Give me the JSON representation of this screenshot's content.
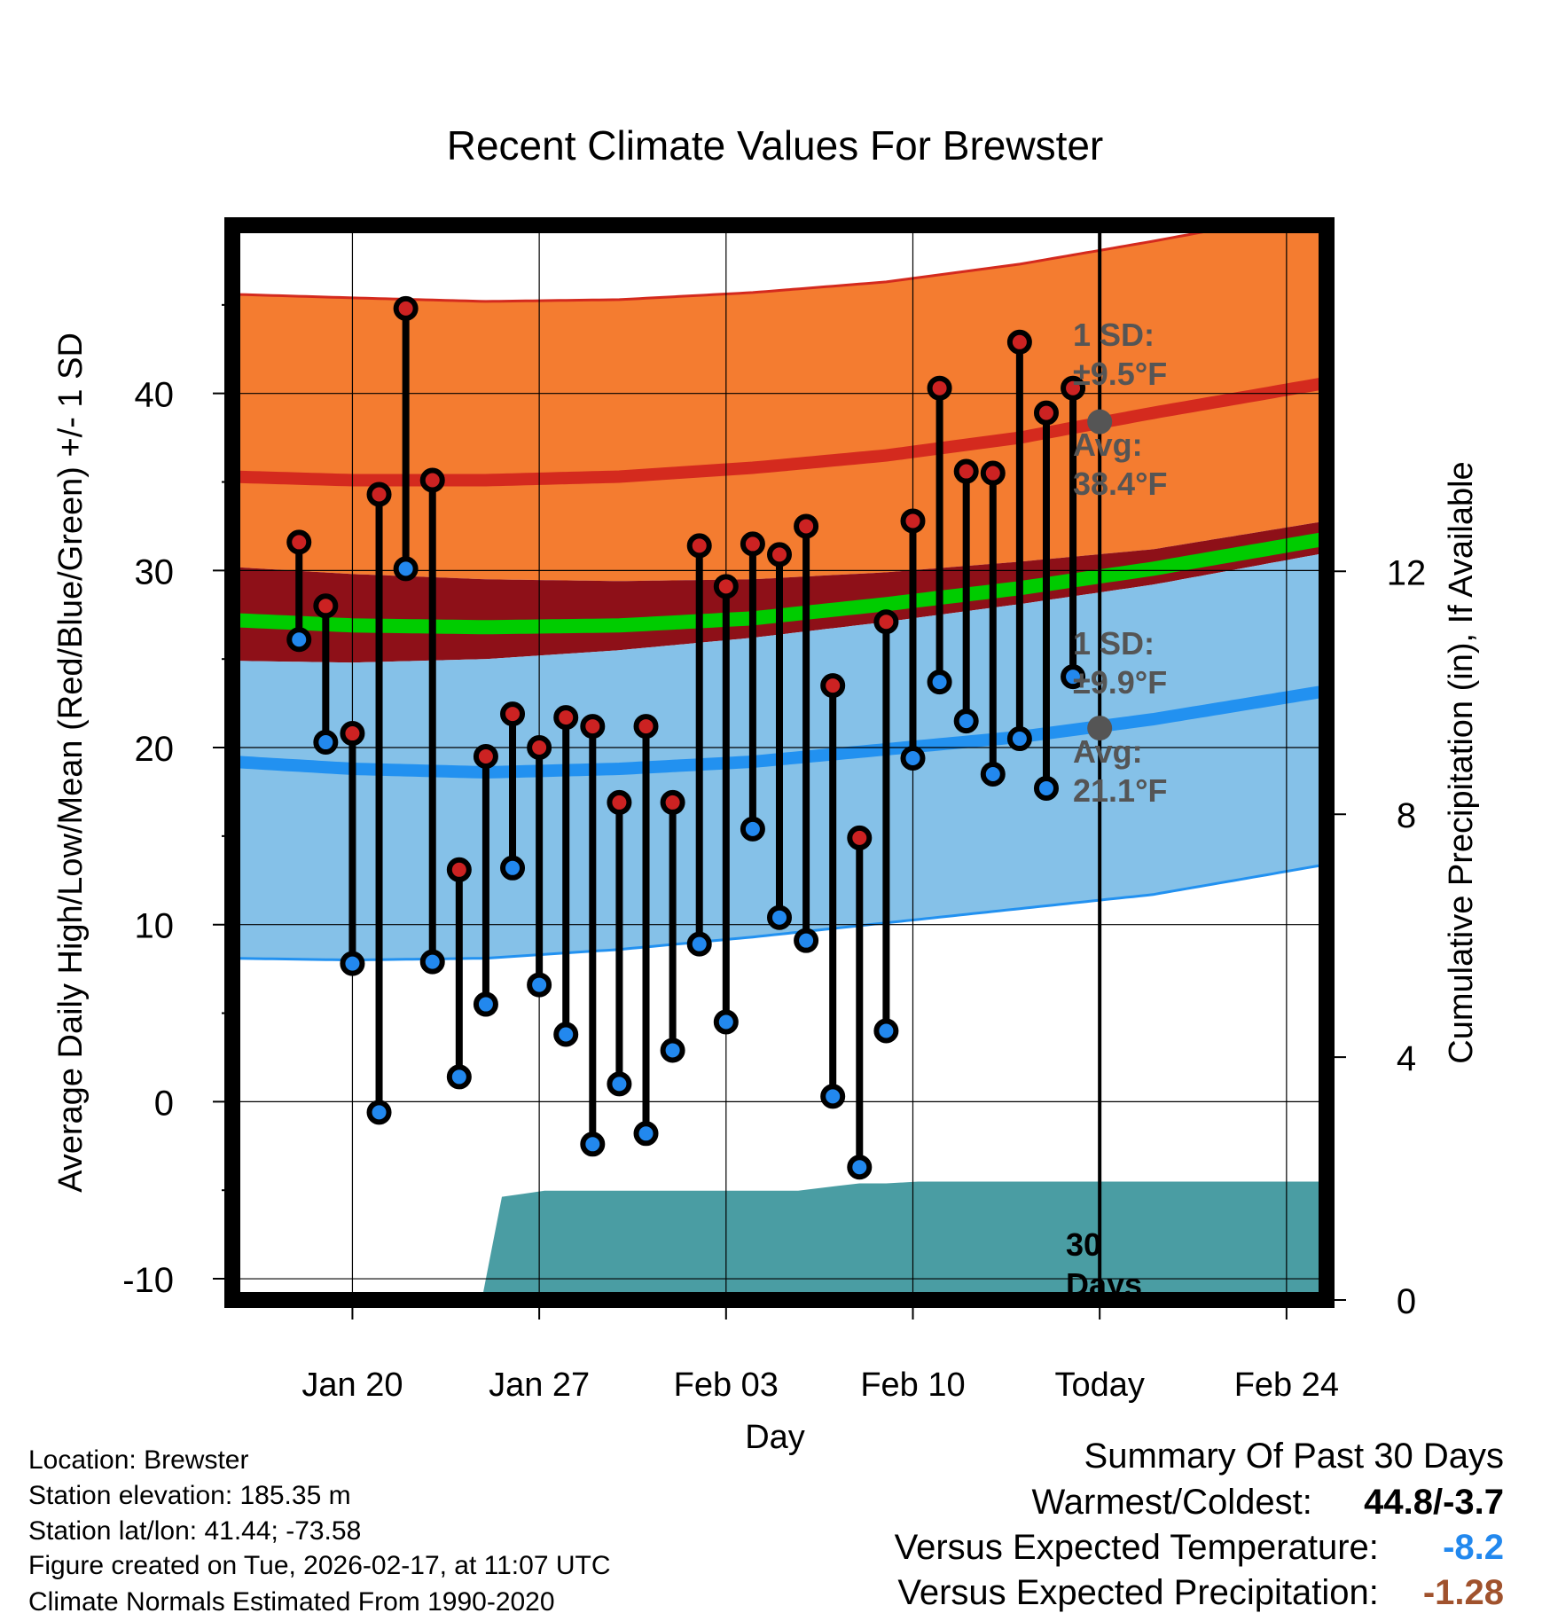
{
  "chart_data": {
    "type": "line",
    "title": "Recent Climate Values For Brewster",
    "xlabel": "Day",
    "ylabel": "Average Daily High/Low/Mean (Red/Blue/Green) +/- 1 SD",
    "y2label": "Cumulative Precipitation (in), If Available",
    "x_range": [
      -4.5,
      36.5
    ],
    "ylim": [
      -11.2,
      49.5
    ],
    "y2lim": [
      0,
      17.7
    ],
    "yticks": [
      -10,
      0,
      10,
      20,
      30,
      40
    ],
    "y2ticks": [
      0,
      4,
      8,
      12
    ],
    "xticks": [
      {
        "day": 0,
        "label": "Jan 20"
      },
      {
        "day": 7,
        "label": "Jan 27"
      },
      {
        "day": 14,
        "label": "Feb 03"
      },
      {
        "day": 21,
        "label": "Feb 10"
      },
      {
        "day": 28,
        "label": "Today"
      },
      {
        "day": 35,
        "label": "Feb 24"
      }
    ],
    "today_day": 28,
    "normals": {
      "days": [
        -4.5,
        0,
        5,
        10,
        15,
        20,
        25,
        30,
        36.5
      ],
      "high_upper": [
        45.6,
        45.4,
        45.2,
        45.3,
        45.7,
        46.3,
        47.3,
        48.6,
        50.4
      ],
      "high_avg": [
        35.3,
        35.1,
        35.1,
        35.3,
        35.8,
        36.5,
        37.5,
        38.9,
        40.6
      ],
      "high_lower": [
        30.2,
        29.8,
        29.5,
        29.4,
        29.5,
        29.9,
        30.5,
        31.2,
        32.8
      ],
      "mean_avg": [
        27.2,
        26.9,
        26.8,
        26.9,
        27.3,
        28.1,
        29.0,
        30.1,
        31.8
      ],
      "low_upper": [
        24.9,
        24.8,
        25.0,
        25.5,
        26.2,
        27.1,
        28.1,
        29.2,
        31.0
      ],
      "low_avg": [
        19.2,
        18.8,
        18.6,
        18.8,
        19.2,
        19.9,
        20.6,
        21.6,
        23.2
      ],
      "low_lower": [
        8.1,
        8.0,
        8.1,
        8.6,
        9.3,
        10.1,
        10.9,
        11.7,
        13.4
      ]
    },
    "series": [
      {
        "name": "High",
        "color": "#cc2222",
        "values": [
          31.6,
          28.0,
          20.8,
          34.3,
          44.8,
          35.1,
          13.1,
          19.5,
          21.9,
          20.0,
          21.7,
          21.2,
          16.9,
          21.2,
          16.9,
          31.4,
          29.1,
          31.5,
          30.9,
          32.5,
          23.5,
          14.9,
          27.1,
          32.8,
          40.3,
          35.6,
          35.5,
          42.9,
          38.9,
          40.3
        ]
      },
      {
        "name": "Low",
        "color": "#2288ee",
        "values": [
          26.1,
          20.3,
          7.8,
          -0.6,
          30.1,
          7.9,
          1.4,
          5.5,
          13.2,
          6.6,
          3.8,
          -2.4,
          1.0,
          -1.8,
          2.9,
          8.9,
          4.5,
          15.4,
          10.4,
          9.1,
          0.3,
          -3.7,
          4.0,
          19.4,
          23.7,
          21.5,
          18.5,
          20.5,
          17.7,
          24.0
        ]
      }
    ],
    "days_start": -2,
    "precipitation": {
      "days": [
        -2,
        2,
        2.9,
        3.8,
        4.9,
        5.6,
        6.4,
        7.2,
        8.5,
        10,
        12,
        14.8,
        15.3,
        16.7,
        18.2,
        19,
        20,
        21.2,
        22.2,
        23.2,
        25,
        28,
        36.5
      ],
      "values": [
        0.12,
        0.12,
        0.12,
        0.12,
        0.12,
        1.7,
        1.75,
        1.8,
        1.8,
        1.8,
        1.8,
        1.8,
        1.8,
        1.8,
        1.88,
        1.92,
        1.92,
        1.95,
        1.95,
        1.95,
        1.95,
        1.95,
        1.95
      ]
    },
    "annotations": {
      "high_sd_label": "1 SD:",
      "high_sd_value": "±9.5°F",
      "high_avg_label": "Avg:",
      "high_avg_value": "38.4°F",
      "high_avg_point": 38.4,
      "low_sd_label": "1 SD:",
      "low_sd_value": "±9.9°F",
      "low_avg_label": "Avg:",
      "low_avg_value": "21.1°F",
      "low_avg_point": 21.1,
      "days_label_1": "30",
      "days_label_2": "Days"
    }
  },
  "footer": {
    "location": "Location: Brewster",
    "elevation": "Station elevation: 185.35 m",
    "latlon": "Station lat/lon: 41.44; -73.58",
    "created": "Figure created on Tue, 2026-02-17, at 11:07 UTC",
    "normals": "Climate Normals Estimated From 1990-2020"
  },
  "summary": {
    "title": "Summary Of Past 30 Days",
    "warm_cold_label": "Warmest/Coldest:",
    "warm_cold_value": "44.8/-3.7",
    "temp_label": "Versus Expected Temperature:",
    "temp_value": "-8.2",
    "temp_color": "#2288ee",
    "precip_label": "Versus Expected Precipitation:",
    "precip_value": "-1.28",
    "precip_color": "#a0522d"
  },
  "colors": {
    "high_band": "#f47c30",
    "high_line": "#d42a1e",
    "mean_band": "#8e1018",
    "mean_line": "#00cc00",
    "low_band": "#85c1e8",
    "low_line": "#2291f0",
    "precip": "#4a9da3",
    "annotation": "#555555"
  }
}
